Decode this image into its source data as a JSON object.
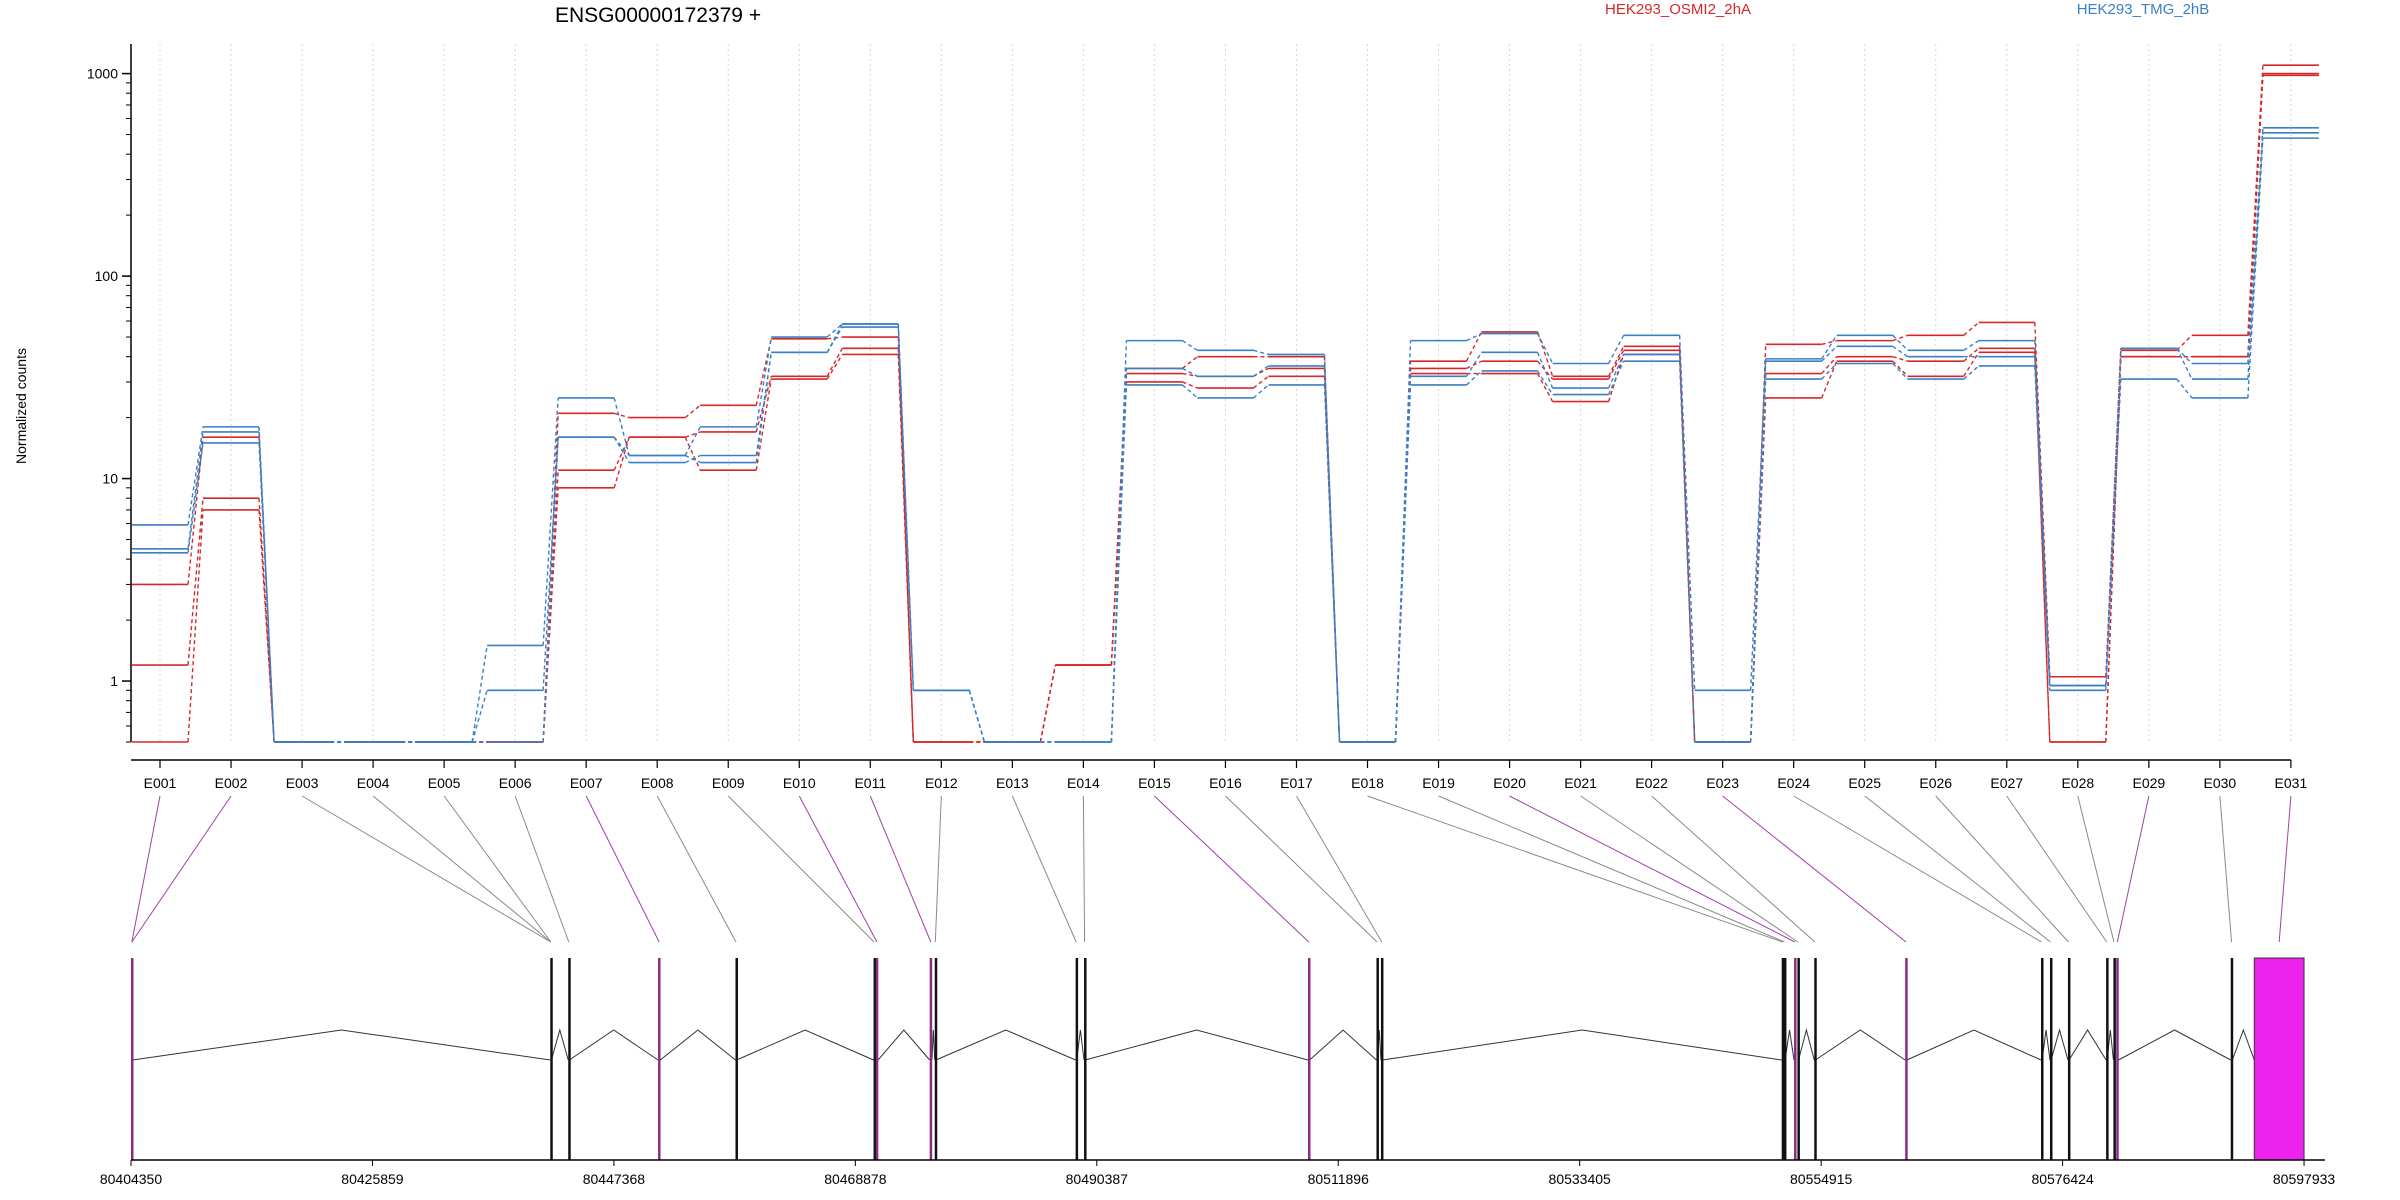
{
  "chart_data": {
    "type": "line",
    "title": "ENSG00000172379 +",
    "ylabel": "Normalized counts",
    "yscale": "log",
    "ylim": [
      0.5,
      1400
    ],
    "ytick_labels": [
      "1",
      "10",
      "100",
      "1000"
    ],
    "yticks": [
      1,
      10,
      100,
      1000
    ],
    "grid": true,
    "legend_placement": "top",
    "categories": [
      "E001",
      "E002",
      "E003",
      "E004",
      "E005",
      "E006",
      "E007",
      "E008",
      "E009",
      "E010",
      "E011",
      "E012",
      "E013",
      "E014",
      "E015",
      "E016",
      "E017",
      "E018",
      "E019",
      "E020",
      "E021",
      "E022",
      "E023",
      "E024",
      "E025",
      "E026",
      "E027",
      "E028",
      "E029",
      "E030",
      "E031"
    ],
    "groups": [
      {
        "name": "HEK293_OSMI2_2hA",
        "color": "#d62728"
      },
      {
        "name": "HEK293_TMG_2hB",
        "color": "#3b7fc4"
      }
    ],
    "series": [
      {
        "group": "HEK293_OSMI2_2hA",
        "values": [
          0.5,
          7,
          0.5,
          0.5,
          0.5,
          0.5,
          9,
          16,
          11,
          31,
          41,
          0.5,
          0.5,
          1.2,
          30,
          28,
          32,
          0.5,
          33,
          33,
          24,
          41,
          0.5,
          25,
          38,
          32,
          42,
          0.5,
          40,
          40,
          980
        ]
      },
      {
        "group": "HEK293_OSMI2_2hA",
        "values": [
          1.2,
          8,
          0.5,
          0.5,
          0.5,
          0.5,
          11,
          16,
          17,
          32,
          44,
          0.5,
          0.5,
          1.2,
          33,
          32,
          35,
          0.5,
          35,
          38,
          31,
          43,
          0.5,
          33,
          40,
          38,
          44,
          0.5,
          40,
          40,
          1000
        ]
      },
      {
        "group": "HEK293_OSMI2_2hA",
        "values": [
          3,
          16,
          0.5,
          0.5,
          0.5,
          0.5,
          21,
          20,
          23,
          49,
          50,
          0.5,
          0.5,
          1.2,
          35,
          40,
          40,
          0.5,
          38,
          53,
          32,
          45,
          0.5,
          46,
          48,
          51,
          59,
          1.05,
          43,
          51,
          1100
        ]
      },
      {
        "group": "HEK293_TMG_2hB",
        "values": [
          4.3,
          15,
          0.5,
          0.5,
          0.5,
          0.5,
          16,
          13,
          12,
          42,
          56,
          0.9,
          0.5,
          0.5,
          29,
          25,
          29,
          0.5,
          29,
          34,
          26,
          38,
          0.5,
          31,
          37,
          31,
          36,
          0.9,
          31,
          25,
          480
        ]
      },
      {
        "group": "HEK293_TMG_2hB",
        "values": [
          4.5,
          17,
          0.5,
          0.5,
          0.5,
          0.9,
          16,
          12,
          13,
          42,
          58,
          0.9,
          0.5,
          0.5,
          35,
          32,
          36,
          0.5,
          32,
          42,
          28,
          41,
          0.5,
          38,
          45,
          40,
          40,
          0.95,
          44,
          31,
          510
        ]
      },
      {
        "group": "HEK293_TMG_2hB",
        "values": [
          5.9,
          18,
          0.5,
          0.5,
          0.5,
          1.5,
          25,
          13,
          18,
          50,
          58,
          0.9,
          0.5,
          0.5,
          48,
          43,
          41,
          0.5,
          48,
          52,
          37,
          51,
          0.9,
          39,
          51,
          43,
          48,
          0.95,
          44,
          37,
          540
        ]
      }
    ],
    "genome_axis": {
      "range": [
        80404350,
        80599800
      ],
      "tick_labels": [
        "80404350",
        "80425859",
        "80447368",
        "80468878",
        "80490387",
        "80511896",
        "80533405",
        "80554915",
        "80576424",
        "80597933"
      ],
      "ticks": [
        80404350,
        80425859,
        80447368,
        80468878,
        80490387,
        80511896,
        80533405,
        80554915,
        80576424,
        80597933
      ]
    },
    "exons": [
      {
        "id": "E001",
        "start": 80404350,
        "end": 80404500,
        "color": "#8b2a8b"
      },
      {
        "id": "E002",
        "start": 80404350,
        "end": 80404500,
        "color": "#8b2a8b"
      },
      {
        "id": "E003",
        "start": 80441700,
        "end": 80441800,
        "color": "#000000"
      },
      {
        "id": "E004",
        "start": 80441700,
        "end": 80441800,
        "color": "#000000"
      },
      {
        "id": "E005",
        "start": 80441700,
        "end": 80441800,
        "color": "#000000"
      },
      {
        "id": "E006",
        "start": 80443300,
        "end": 80443400,
        "color": "#000000"
      },
      {
        "id": "E007",
        "start": 80451300,
        "end": 80451500,
        "color": "#8b2a8b"
      },
      {
        "id": "E008",
        "start": 80458200,
        "end": 80458300,
        "color": "#000000"
      },
      {
        "id": "E009",
        "start": 80470500,
        "end": 80470600,
        "color": "#000000"
      },
      {
        "id": "E010",
        "start": 80470700,
        "end": 80470900,
        "color": "#8b2a8b"
      },
      {
        "id": "E011",
        "start": 80475500,
        "end": 80475700,
        "color": "#8b2a8b"
      },
      {
        "id": "E012",
        "start": 80475950,
        "end": 80476050,
        "color": "#000000"
      },
      {
        "id": "E013",
        "start": 80488500,
        "end": 80488600,
        "color": "#000000"
      },
      {
        "id": "E014",
        "start": 80489250,
        "end": 80489350,
        "color": "#000000"
      },
      {
        "id": "E015",
        "start": 80509200,
        "end": 80509350,
        "color": "#8b2a8b"
      },
      {
        "id": "E016",
        "start": 80515300,
        "end": 80515400,
        "color": "#000000"
      },
      {
        "id": "E017",
        "start": 80515700,
        "end": 80515850,
        "color": "#000000"
      },
      {
        "id": "E018",
        "start": 80551400,
        "end": 80551550,
        "color": "#000000"
      },
      {
        "id": "E019",
        "start": 80551600,
        "end": 80551700,
        "color": "#000000"
      },
      {
        "id": "E020",
        "start": 80552500,
        "end": 80552650,
        "color": "#8b2a8b"
      },
      {
        "id": "E021",
        "start": 80552800,
        "end": 80552900,
        "color": "#000000"
      },
      {
        "id": "E022",
        "start": 80554300,
        "end": 80554400,
        "color": "#000000"
      },
      {
        "id": "E023",
        "start": 80562400,
        "end": 80562550,
        "color": "#8b2a8b"
      },
      {
        "id": "E024",
        "start": 80574500,
        "end": 80574600,
        "color": "#000000"
      },
      {
        "id": "E025",
        "start": 80575300,
        "end": 80575400,
        "color": "#000000"
      },
      {
        "id": "E026",
        "start": 80576900,
        "end": 80577000,
        "color": "#000000"
      },
      {
        "id": "E027",
        "start": 80580300,
        "end": 80580400,
        "color": "#000000"
      },
      {
        "id": "E028",
        "start": 80580950,
        "end": 80581050,
        "color": "#000000"
      },
      {
        "id": "E029",
        "start": 80581200,
        "end": 80581400,
        "color": "#8b2a8b"
      },
      {
        "id": "E030",
        "start": 80591400,
        "end": 80591550,
        "color": "#000000"
      },
      {
        "id": "E031",
        "start": 80593500,
        "end": 80597933,
        "color": "#ee22ee"
      }
    ]
  }
}
